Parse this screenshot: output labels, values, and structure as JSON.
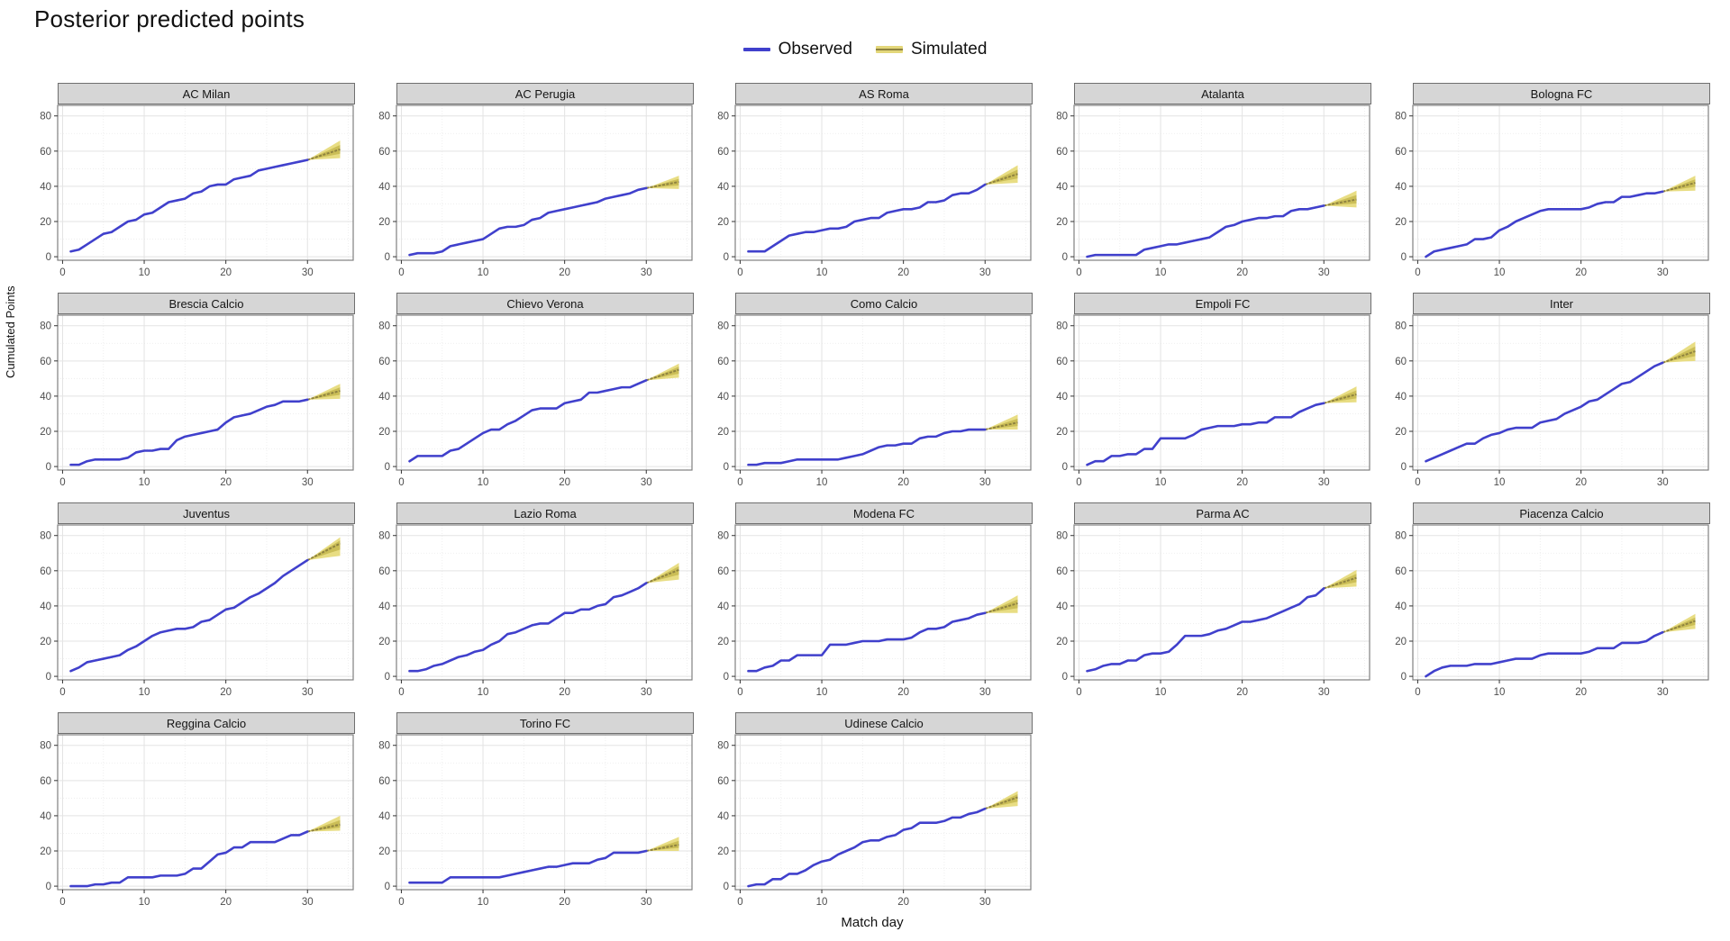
{
  "title": "Posterior predicted points",
  "legend": {
    "observed_label": "Observed",
    "simulated_label": "Simulated"
  },
  "axes": {
    "x_label": "Match day",
    "y_label": "Cumulated Points",
    "x_ticks": [
      0,
      10,
      20,
      30
    ],
    "y_ticks": [
      0,
      20,
      40,
      60,
      80
    ],
    "x_minor": [
      5,
      15,
      25,
      35
    ],
    "y_minor": [
      10,
      30,
      50,
      70
    ],
    "x_range": [
      -0.6,
      35.6
    ],
    "y_range": [
      -2,
      86
    ]
  },
  "colors": {
    "observed_line": "#4040cc",
    "simulated_band_outer": "#e7db7c",
    "simulated_band_inner": "#c6b850",
    "simulated_median": "#8f8340",
    "strip_bg": "#d6d6d6",
    "panel_border": "#808080",
    "grid_major": "#e3e3e3",
    "grid_minor": "#ededed",
    "tick_text": "#4d4d4d"
  },
  "chart_data": {
    "type": "line",
    "title": "Posterior predicted points",
    "xlabel": "Match day",
    "ylabel": "Cumulated Points",
    "x_observed_days": "1-30",
    "simulated_days": [
      30,
      31,
      32,
      33,
      34
    ],
    "facets": [
      {
        "team": "AC Milan",
        "observed": [
          3,
          4,
          7,
          10,
          13,
          14,
          17,
          20,
          21,
          24,
          25,
          28,
          31,
          32,
          33,
          36,
          37,
          40,
          41,
          41,
          44,
          45,
          46,
          49,
          50,
          51,
          52,
          53,
          54,
          55
        ],
        "simulated": {
          "start": 55,
          "median_end": 61,
          "lower_end": 56,
          "upper_end": 66
        }
      },
      {
        "team": "AC Perugia",
        "observed": [
          1,
          2,
          2,
          2,
          3,
          6,
          7,
          8,
          9,
          10,
          13,
          16,
          17,
          17,
          18,
          21,
          22,
          25,
          26,
          27,
          28,
          29,
          30,
          31,
          33,
          34,
          35,
          36,
          38,
          39
        ],
        "simulated": {
          "start": 39,
          "median_end": 42.5,
          "lower_end": 38.5,
          "upper_end": 46
        }
      },
      {
        "team": "AS Roma",
        "observed": [
          3,
          3,
          3,
          6,
          9,
          12,
          13,
          14,
          14,
          15,
          16,
          16,
          17,
          20,
          21,
          22,
          22,
          25,
          26,
          27,
          27,
          28,
          31,
          31,
          32,
          35,
          36,
          36,
          38,
          41
        ],
        "simulated": {
          "start": 41,
          "median_end": 47,
          "lower_end": 42,
          "upper_end": 52
        }
      },
      {
        "team": "Atalanta",
        "observed": [
          0,
          1,
          1,
          1,
          1,
          1,
          1,
          4,
          5,
          6,
          7,
          7,
          8,
          9,
          10,
          11,
          14,
          17,
          18,
          20,
          21,
          22,
          22,
          23,
          23,
          26,
          27,
          27,
          28,
          29
        ],
        "simulated": {
          "start": 29,
          "median_end": 32.5,
          "lower_end": 28,
          "upper_end": 37.5
        }
      },
      {
        "team": "Bologna FC",
        "observed": [
          0,
          3,
          4,
          5,
          6,
          7,
          10,
          10,
          11,
          15,
          17,
          20,
          22,
          24,
          26,
          27,
          27,
          27,
          27,
          27,
          28,
          30,
          31,
          31,
          34,
          34,
          35,
          36,
          36,
          37
        ],
        "simulated": {
          "start": 37,
          "median_end": 42,
          "lower_end": 37.5,
          "upper_end": 46
        }
      },
      {
        "team": "Brescia Calcio",
        "observed": [
          1,
          1,
          3,
          4,
          4,
          4,
          4,
          5,
          8,
          9,
          9,
          10,
          10,
          15,
          17,
          18,
          19,
          20,
          21,
          25,
          28,
          29,
          30,
          32,
          34,
          35,
          37,
          37,
          37,
          38
        ],
        "simulated": {
          "start": 38,
          "median_end": 43,
          "lower_end": 38.5,
          "upper_end": 47
        }
      },
      {
        "team": "Chievo Verona",
        "observed": [
          3,
          6,
          6,
          6,
          6,
          9,
          10,
          13,
          16,
          19,
          21,
          21,
          24,
          26,
          29,
          32,
          33,
          33,
          33,
          36,
          37,
          38,
          42,
          42,
          43,
          44,
          45,
          45,
          47,
          49
        ],
        "simulated": {
          "start": 49,
          "median_end": 55,
          "lower_end": 50.5,
          "upper_end": 58.5
        }
      },
      {
        "team": "Como Calcio",
        "observed": [
          1,
          1,
          2,
          2,
          2,
          3,
          4,
          4,
          4,
          4,
          4,
          4,
          5,
          6,
          7,
          9,
          11,
          12,
          12,
          13,
          13,
          16,
          17,
          17,
          19,
          20,
          20,
          21,
          21,
          21
        ],
        "simulated": {
          "start": 21,
          "median_end": 25,
          "lower_end": 21,
          "upper_end": 29.5
        }
      },
      {
        "team": "Empoli FC",
        "observed": [
          1,
          3,
          3,
          6,
          6,
          7,
          7,
          10,
          10,
          16,
          16,
          16,
          16,
          18,
          21,
          22,
          23,
          23,
          23,
          24,
          24,
          25,
          25,
          28,
          28,
          28,
          31,
          33,
          35,
          36
        ],
        "simulated": {
          "start": 36,
          "median_end": 41,
          "lower_end": 36.5,
          "upper_end": 45.5
        }
      },
      {
        "team": "Inter",
        "observed": [
          3,
          5,
          7,
          9,
          11,
          13,
          13,
          16,
          18,
          19,
          21,
          22,
          22,
          22,
          25,
          26,
          27,
          30,
          32,
          34,
          37,
          38,
          41,
          44,
          47,
          48,
          51,
          54,
          57,
          59
        ],
        "simulated": {
          "start": 59,
          "median_end": 65.5,
          "lower_end": 60,
          "upper_end": 71
        }
      },
      {
        "team": "Juventus",
        "observed": [
          3,
          5,
          8,
          9,
          10,
          11,
          12,
          15,
          17,
          20,
          23,
          25,
          26,
          27,
          27,
          28,
          31,
          32,
          35,
          38,
          39,
          42,
          45,
          47,
          50,
          53,
          57,
          60,
          63,
          66
        ],
        "simulated": {
          "start": 66,
          "median_end": 75.5,
          "lower_end": 68.5,
          "upper_end": 79
        }
      },
      {
        "team": "Lazio Roma",
        "observed": [
          3,
          3,
          4,
          6,
          7,
          9,
          11,
          12,
          14,
          15,
          18,
          20,
          24,
          25,
          27,
          29,
          30,
          30,
          33,
          36,
          36,
          38,
          38,
          40,
          41,
          45,
          46,
          48,
          50,
          53
        ],
        "simulated": {
          "start": 53,
          "median_end": 60.5,
          "lower_end": 55,
          "upper_end": 64.5
        }
      },
      {
        "team": "Modena FC",
        "observed": [
          3,
          3,
          5,
          6,
          9,
          9,
          12,
          12,
          12,
          12,
          18,
          18,
          18,
          19,
          20,
          20,
          20,
          21,
          21,
          21,
          22,
          25,
          27,
          27,
          28,
          31,
          32,
          33,
          35,
          36
        ],
        "simulated": {
          "start": 36,
          "median_end": 41.5,
          "lower_end": 36,
          "upper_end": 46
        }
      },
      {
        "team": "Parma AC",
        "observed": [
          3,
          4,
          6,
          7,
          7,
          9,
          9,
          12,
          13,
          13,
          14,
          18,
          23,
          23,
          23,
          24,
          26,
          27,
          29,
          31,
          31,
          32,
          33,
          35,
          37,
          39,
          41,
          45,
          46,
          50
        ],
        "simulated": {
          "start": 50,
          "median_end": 56,
          "lower_end": 51,
          "upper_end": 60.5
        }
      },
      {
        "team": "Piacenza Calcio",
        "observed": [
          0,
          3,
          5,
          6,
          6,
          6,
          7,
          7,
          7,
          8,
          9,
          10,
          10,
          10,
          12,
          13,
          13,
          13,
          13,
          13,
          14,
          16,
          16,
          16,
          19,
          19,
          19,
          20,
          23,
          25
        ],
        "simulated": {
          "start": 25,
          "median_end": 31.5,
          "lower_end": 27,
          "upper_end": 35.5
        }
      },
      {
        "team": "Reggina Calcio",
        "observed": [
          0,
          0,
          0,
          1,
          1,
          2,
          2,
          5,
          5,
          5,
          5,
          6,
          6,
          6,
          7,
          10,
          10,
          14,
          18,
          19,
          22,
          22,
          25,
          25,
          25,
          25,
          27,
          29,
          29,
          31
        ],
        "simulated": {
          "start": 31,
          "median_end": 35,
          "lower_end": 31.5,
          "upper_end": 40
        }
      },
      {
        "team": "Torino FC",
        "observed": [
          2,
          2,
          2,
          2,
          2,
          5,
          5,
          5,
          5,
          5,
          5,
          5,
          6,
          7,
          8,
          9,
          10,
          11,
          11,
          12,
          13,
          13,
          13,
          15,
          16,
          19,
          19,
          19,
          19,
          20
        ],
        "simulated": {
          "start": 20,
          "median_end": 23.5,
          "lower_end": 20,
          "upper_end": 28
        }
      },
      {
        "team": "Udinese Calcio",
        "observed": [
          0,
          1,
          1,
          4,
          4,
          7,
          7,
          9,
          12,
          14,
          15,
          18,
          20,
          22,
          25,
          26,
          26,
          28,
          29,
          32,
          33,
          36,
          36,
          36,
          37,
          39,
          39,
          41,
          42,
          44
        ],
        "simulated": {
          "start": 44,
          "median_end": 50.5,
          "lower_end": 45.5,
          "upper_end": 54
        }
      }
    ]
  }
}
